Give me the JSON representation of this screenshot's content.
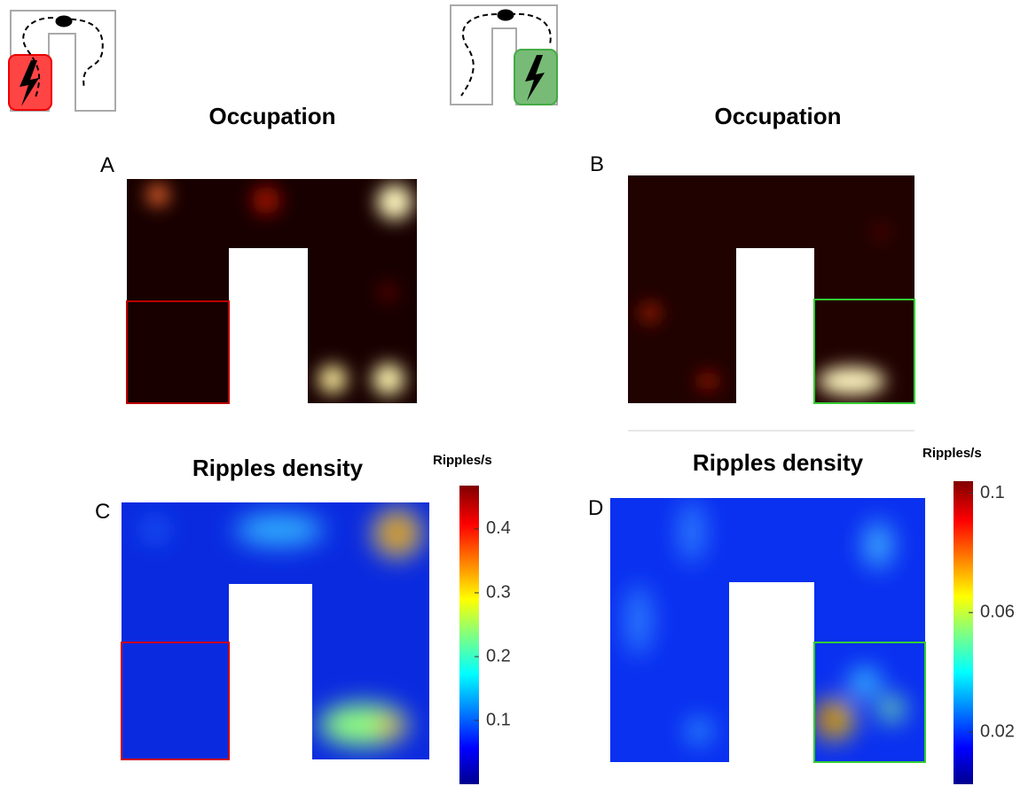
{
  "panels": [
    {
      "label": "A",
      "title": "Occupation"
    },
    {
      "label": "B",
      "title": "Occupation"
    },
    {
      "label": "C",
      "title": "Ripples density",
      "colorbar": {
        "title": "Ripples/s",
        "lim": [
          0,
          0.468
        ],
        "ticks": [
          0.1,
          0.2,
          0.3,
          0.4
        ]
      }
    },
    {
      "label": "D",
      "title": "Ripples density",
      "colorbar": {
        "title": "Ripples/s",
        "lim": [
          0.0025,
          0.104
        ],
        "ticks": [
          0.02,
          0.06,
          0.1
        ]
      }
    }
  ]
}
